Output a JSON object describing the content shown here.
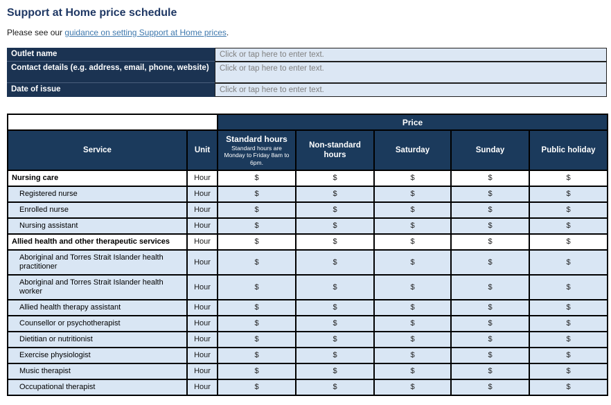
{
  "page": {
    "title": "Support at Home price schedule",
    "intro_prefix": "Please see our ",
    "intro_link": "guidance on setting Support at Home prices",
    "intro_suffix": "."
  },
  "colors": {
    "navy_header": "#1B3A5C",
    "navy_form_label": "#1B3352",
    "light_blue_row": "#D9E6F4",
    "light_blue_input": "#DCE7F4",
    "link_blue": "#3E78AD",
    "title_blue": "#1F3864",
    "placeholder_gray": "#808080"
  },
  "form": {
    "fields": [
      {
        "label": "Outlet name",
        "value": "Click or tap here to enter text.",
        "tall": false
      },
      {
        "label": "Contact details (e.g. address, email, phone, website)",
        "value": "Click or tap here to enter text.",
        "tall": true
      },
      {
        "label": "Date of issue",
        "value": "Click or tap here to enter text.",
        "tall": false
      }
    ]
  },
  "table": {
    "price_header": "Price",
    "columns": {
      "service": "Service",
      "unit": "Unit",
      "standard": "Standard hours",
      "standard_note": "Standard hours are Monday to Friday 8am to 6pm.",
      "nonstandard": "Non-standard hours",
      "saturday": "Saturday",
      "sunday": "Sunday",
      "public_holiday": "Public holiday"
    },
    "unit_value": "Hour",
    "price_placeholder": "$",
    "price_column_count": 5,
    "rows": [
      {
        "service": "Nursing care",
        "style": "section"
      },
      {
        "service": "Registered nurse",
        "style": "sub"
      },
      {
        "service": "Enrolled nurse",
        "style": "sub"
      },
      {
        "service": "Nursing assistant",
        "style": "sub"
      },
      {
        "service": "Allied health and other therapeutic services",
        "style": "section"
      },
      {
        "service": "Aboriginal and Torres Strait Islander health practitioner",
        "style": "sub"
      },
      {
        "service": "Aboriginal and Torres Strait Islander health worker",
        "style": "sub"
      },
      {
        "service": "Allied health therapy assistant",
        "style": "sub"
      },
      {
        "service": "Counsellor or psychotherapist",
        "style": "sub"
      },
      {
        "service": "Dietitian or nutritionist",
        "style": "sub"
      },
      {
        "service": "Exercise physiologist",
        "style": "sub"
      },
      {
        "service": "Music therapist",
        "style": "sub"
      },
      {
        "service": "Occupational therapist",
        "style": "sub"
      }
    ]
  }
}
